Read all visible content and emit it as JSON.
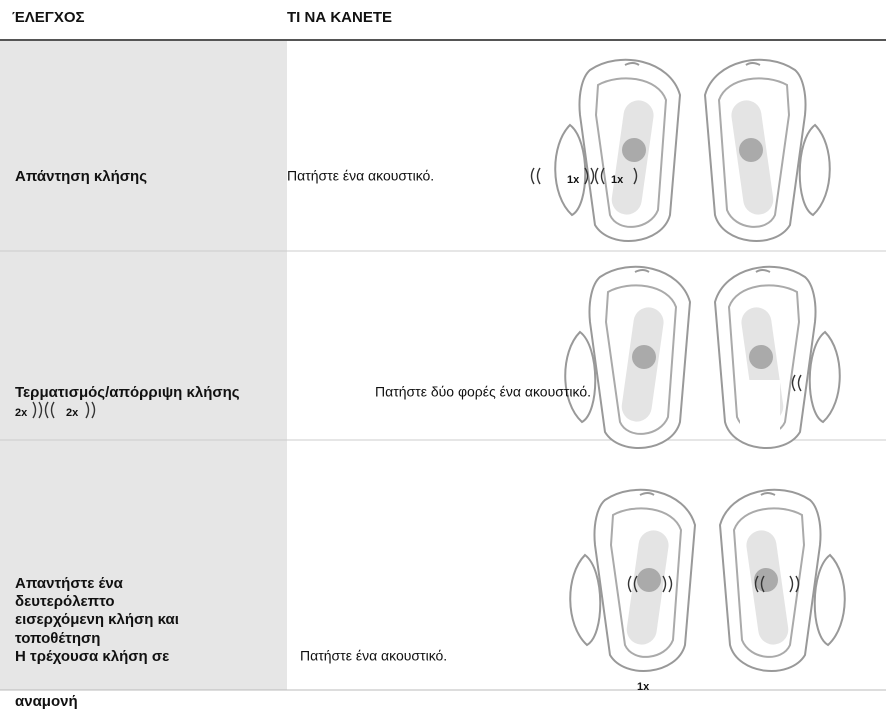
{
  "header": {
    "control": "ΈΛΕΓΧΟΣ",
    "action": "ΤΙ ΝΑ ΚΑΝΕΤΕ"
  },
  "rows": [
    {
      "control": [
        "Απάντηση κλήσης"
      ],
      "action": "Πατήστε ένα ακουστικό.",
      "labels": [
        "1x",
        "1x"
      ]
    },
    {
      "control": [
        "Τερματισμός/απόρριψη κλήσης"
      ],
      "action": "Πατήστε δύο φορές ένα ακουστικό.",
      "labels": [
        "2x",
        "2x"
      ]
    },
    {
      "control": [
        "Απαντήστε ένα",
        "δευτερόλεπτο",
        "εισερχόμενη κλήση και",
        "τοποθέτηση",
        "Η τρέχουσα κλήση σε",
        "αναμονή"
      ],
      "action": "Πατήστε ένα ακουστικό.",
      "labels": [
        "1x"
      ]
    }
  ]
}
